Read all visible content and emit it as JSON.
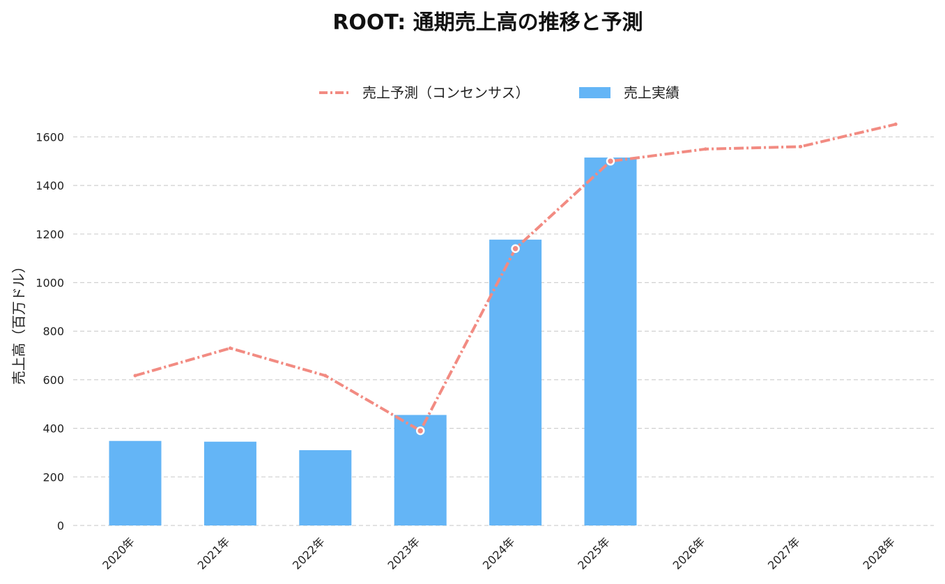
{
  "chart_data": {
    "type": "bar",
    "title": "ROOT: 通期売上高の推移と予測",
    "ylabel": "売上高（百万ドル）",
    "xlabel": "",
    "categories": [
      "2020年",
      "2021年",
      "2022年",
      "2023年",
      "2024年",
      "2025年",
      "2026年",
      "2027年",
      "2028年"
    ],
    "ylim": [
      0,
      1650
    ],
    "yticks": [
      0,
      200,
      400,
      600,
      800,
      1000,
      1200,
      1400,
      1600
    ],
    "grid": true,
    "legend_position": "top-center",
    "series": [
      {
        "name": "売上実績",
        "type": "bar",
        "color": "#64b5f6",
        "values": [
          348,
          345,
          310,
          455,
          1177,
          1515,
          null,
          null,
          null
        ]
      },
      {
        "name": "売上予測（コンセンサス）",
        "type": "line",
        "style": "dash-dot",
        "color": "#f28b82",
        "values": [
          617,
          730,
          617,
          390,
          1140,
          1500,
          1550,
          1560,
          1652
        ],
        "markers_at": [
          "2023年",
          "2024年",
          "2025年"
        ]
      }
    ]
  }
}
